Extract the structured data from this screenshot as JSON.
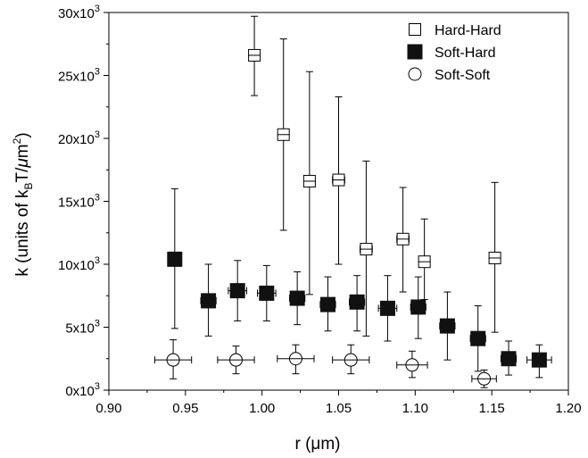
{
  "chart_data": {
    "type": "scatter",
    "xlabel": "r (μm)",
    "ylabel": {
      "pre": "k (units of k",
      "sub": "B",
      "mid": "T/",
      "mu": "μ",
      "m": "m",
      "sup": "2",
      "post": ")"
    },
    "xlim": [
      0.9,
      1.2
    ],
    "ylim": [
      0,
      30000
    ],
    "xticks": [
      0.9,
      0.95,
      1.0,
      1.05,
      1.1,
      1.15,
      1.2
    ],
    "xtick_labels": [
      "0.90",
      "0.95",
      "1.00",
      "1.05",
      "1.10",
      "1.15",
      "1.20"
    ],
    "yticks": [
      0,
      5000,
      10000,
      15000,
      20000,
      25000,
      30000
    ],
    "ytick_labels": [
      {
        "base": "0x10",
        "exp": "3"
      },
      {
        "base": "5x10",
        "exp": "3"
      },
      {
        "base": "10x10",
        "exp": "3"
      },
      {
        "base": "15x10",
        "exp": "3"
      },
      {
        "base": "20x10",
        "exp": "3"
      },
      {
        "base": "25x10",
        "exp": "3"
      },
      {
        "base": "30x10",
        "exp": "3"
      }
    ],
    "legend_position": "top-right",
    "series": [
      {
        "name": "Hard-Hard",
        "marker": "open-square",
        "points": [
          {
            "x": 0.995,
            "y": 26600,
            "ylo": 23400,
            "yhi": 29700,
            "xerr": 0.003
          },
          {
            "x": 1.014,
            "y": 20300,
            "ylo": 12700,
            "yhi": 27900,
            "xerr": 0.003
          },
          {
            "x": 1.031,
            "y": 16600,
            "ylo": 7600,
            "yhi": 25300,
            "xerr": 0.003
          },
          {
            "x": 1.05,
            "y": 16700,
            "ylo": 10000,
            "yhi": 23300,
            "xerr": 0.004
          },
          {
            "x": 1.068,
            "y": 11200,
            "ylo": 4300,
            "yhi": 18200,
            "xerr": 0.004
          },
          {
            "x": 1.092,
            "y": 12000,
            "ylo": 7800,
            "yhi": 16100,
            "xerr": 0.004
          },
          {
            "x": 1.106,
            "y": 10200,
            "ylo": 7200,
            "yhi": 13600,
            "xerr": 0.003
          },
          {
            "x": 1.152,
            "y": 10500,
            "ylo": 4600,
            "yhi": 16500,
            "xerr": 0.003
          }
        ]
      },
      {
        "name": "Soft-Hard",
        "marker": "filled-square",
        "points": [
          {
            "x": 0.943,
            "y": 10400,
            "ylo": 4900,
            "yhi": 16000,
            "xerr": 0.0
          },
          {
            "x": 0.965,
            "y": 7100,
            "ylo": 4300,
            "yhi": 10000,
            "xerr": 0.005
          },
          {
            "x": 0.984,
            "y": 7900,
            "ylo": 5500,
            "yhi": 10300,
            "xerr": 0.006
          },
          {
            "x": 1.003,
            "y": 7700,
            "ylo": 5500,
            "yhi": 9900,
            "xerr": 0.006
          },
          {
            "x": 1.023,
            "y": 7300,
            "ylo": 5200,
            "yhi": 9400,
            "xerr": 0.005
          },
          {
            "x": 1.043,
            "y": 6800,
            "ylo": 4700,
            "yhi": 9000,
            "xerr": 0.005
          },
          {
            "x": 1.062,
            "y": 7000,
            "ylo": 4700,
            "yhi": 9100,
            "xerr": 0.005
          },
          {
            "x": 1.082,
            "y": 6500,
            "ylo": 3900,
            "yhi": 9100,
            "xerr": 0.006
          },
          {
            "x": 1.102,
            "y": 6600,
            "ylo": 4100,
            "yhi": 9000,
            "xerr": 0.005
          },
          {
            "x": 1.121,
            "y": 5100,
            "ylo": 2400,
            "yhi": 7800,
            "xerr": 0.005
          },
          {
            "x": 1.141,
            "y": 4100,
            "ylo": 1500,
            "yhi": 6700,
            "xerr": 0.005
          },
          {
            "x": 1.161,
            "y": 2500,
            "ylo": 1200,
            "yhi": 3900,
            "xerr": 0.005
          },
          {
            "x": 1.181,
            "y": 2400,
            "ylo": 1000,
            "yhi": 3600,
            "xerr": 0.008
          }
        ]
      },
      {
        "name": "Soft-Soft",
        "marker": "open-circle",
        "points": [
          {
            "x": 0.942,
            "y": 2400,
            "ylo": 900,
            "yhi": 4000,
            "xerr": 0.012
          },
          {
            "x": 0.983,
            "y": 2400,
            "ylo": 1300,
            "yhi": 3500,
            "xerr": 0.012
          },
          {
            "x": 1.022,
            "y": 2500,
            "ylo": 1300,
            "yhi": 3600,
            "xerr": 0.012
          },
          {
            "x": 1.058,
            "y": 2400,
            "ylo": 1300,
            "yhi": 3600,
            "xerr": 0.012
          },
          {
            "x": 1.098,
            "y": 2000,
            "ylo": 1000,
            "yhi": 3100,
            "xerr": 0.01
          },
          {
            "x": 1.145,
            "y": 900,
            "ylo": 200,
            "yhi": 1600,
            "xerr": 0.008
          }
        ]
      }
    ]
  }
}
